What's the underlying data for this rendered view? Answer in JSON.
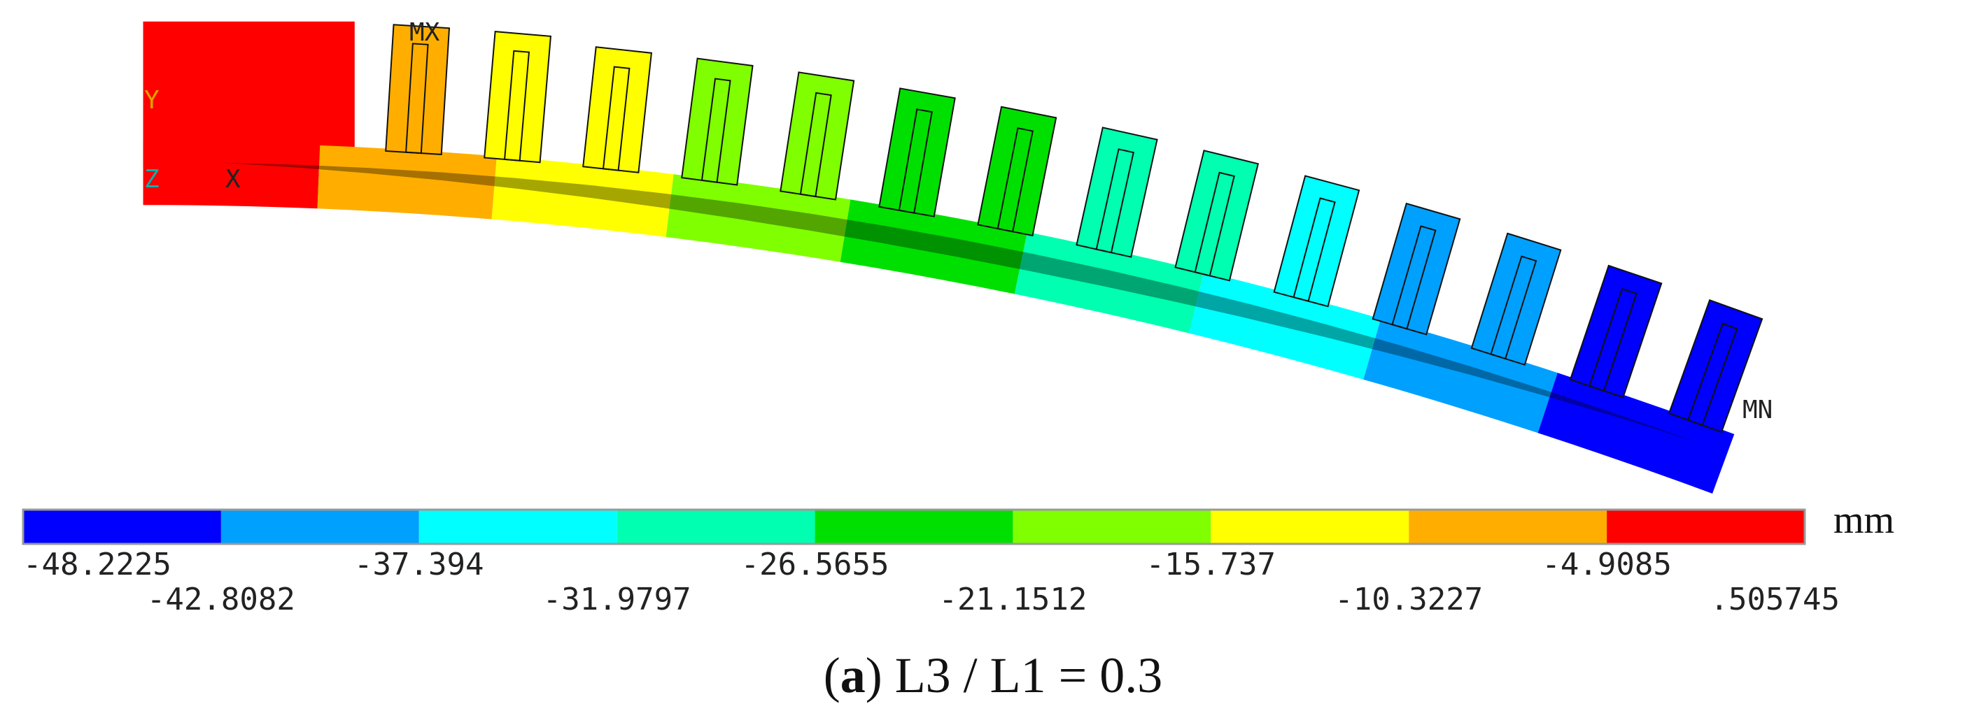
{
  "figure": {
    "markers": {
      "y_axis": "Y",
      "z_axis": "Z",
      "x_axis": "X",
      "max": "MX",
      "min": "MN"
    },
    "colorbar": {
      "colors": [
        "#0000ff",
        "#00a0ff",
        "#00ffff",
        "#00ffb0",
        "#00e000",
        "#80ff00",
        "#ffff00",
        "#ffae00",
        "#ff0000"
      ],
      "labels": [
        "-48.2225",
        "-42.8082",
        "-37.394",
        "-31.9797",
        "-26.5655",
        "-21.1512",
        "-15.737",
        "-10.3227",
        "-4.9085",
        ".505745"
      ],
      "unit": "mm"
    },
    "caption": {
      "open": "(",
      "label": "a",
      "text": ") L3 / L1 = 0.3"
    }
  }
}
